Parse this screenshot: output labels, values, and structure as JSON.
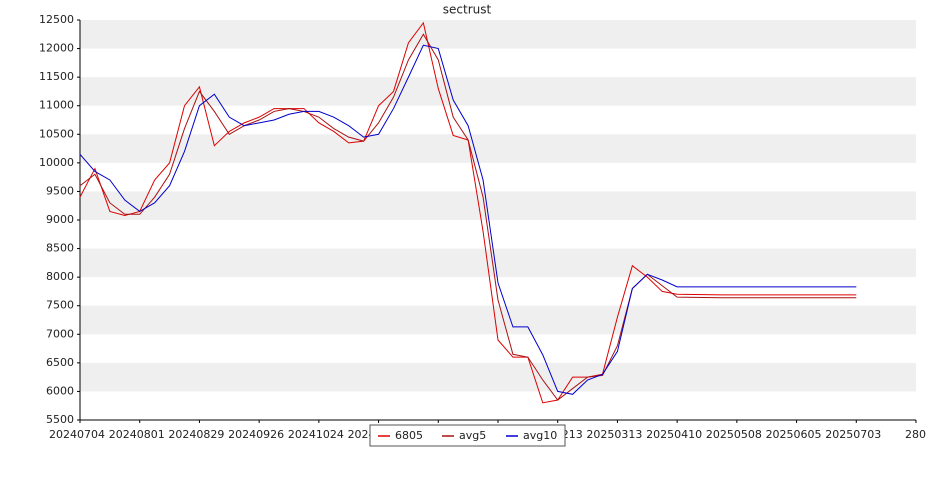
{
  "chart_data": {
    "type": "line",
    "title": "sectrust",
    "x": [
      "20240704",
      "20240711",
      "20240718",
      "20240725",
      "20240801",
      "20240808",
      "20240815",
      "20240822",
      "20240829",
      "20240905",
      "20240912",
      "20240919",
      "20240926",
      "20241003",
      "20241010",
      "20241017",
      "20241024",
      "20241031",
      "20241107",
      "20241114",
      "20241121",
      "20241128",
      "20241205",
      "20241212",
      "20241219",
      "20241226",
      "20250102",
      "20250109",
      "20250116",
      "20250123",
      "20250130",
      "20250206",
      "20250213",
      "20250220",
      "20250227",
      "20250306",
      "20250313",
      "20250320",
      "20250327",
      "20250403",
      "20250410",
      "20250501",
      "20250529",
      "20250703"
    ],
    "series": [
      {
        "name": "6805",
        "color": "#dd0000",
        "values": [
          9400,
          9900,
          9150,
          9080,
          9150,
          9700,
          10000,
          11000,
          11330,
          10300,
          10550,
          10700,
          10800,
          10950,
          10950,
          10950,
          10700,
          10550,
          10350,
          10380,
          11000,
          11250,
          12100,
          12450,
          11300,
          10480,
          10400,
          8800,
          6900,
          6600,
          6600,
          5800,
          5850,
          6250,
          6250,
          6300,
          7300,
          8200,
          8000,
          7750,
          7700,
          7690,
          7690,
          7690
        ]
      },
      {
        "name": "avg5",
        "color": "#aa1111",
        "values": [
          9600,
          9800,
          9300,
          9100,
          9100,
          9400,
          9800,
          10600,
          11250,
          10900,
          10500,
          10650,
          10750,
          10900,
          10950,
          10900,
          10800,
          10600,
          10450,
          10380,
          10700,
          11150,
          11800,
          12250,
          11800,
          10800,
          10400,
          9400,
          7600,
          6650,
          6600,
          6200,
          5850,
          6050,
          6250,
          6280,
          6800,
          7800,
          8050,
          7850,
          7650,
          7640,
          7640,
          7640
        ]
      },
      {
        "name": "avg10",
        "color": "#0000cc",
        "values": [
          10150,
          9850,
          9700,
          9350,
          9150,
          9300,
          9600,
          10200,
          11000,
          11200,
          10800,
          10650,
          10700,
          10750,
          10850,
          10900,
          10900,
          10800,
          10650,
          10450,
          10500,
          10950,
          11500,
          12060,
          12000,
          11100,
          10650,
          9700,
          7900,
          7130,
          7130,
          6640,
          6000,
          5950,
          6200,
          6300,
          6700,
          7800,
          8050,
          7950,
          7830,
          7830,
          7830,
          7830
        ]
      }
    ],
    "ylim": [
      5500,
      12500
    ],
    "yticks": [
      5500,
      6000,
      6500,
      7000,
      7500,
      8000,
      8500,
      9000,
      9500,
      10000,
      10500,
      11000,
      11500,
      12000,
      12500
    ],
    "xlim": [
      "20240704",
      "20250731"
    ],
    "xticks": [
      "20240704",
      "20240801",
      "20240829",
      "20240926",
      "20241024",
      "20241121",
      "20241219",
      "20250116",
      "20250213",
      "20250313",
      "20250410",
      "20250508",
      "20250605",
      "20250703",
      {
        "value": "20250731",
        "label": "280"
      }
    ],
    "grid": true
  }
}
